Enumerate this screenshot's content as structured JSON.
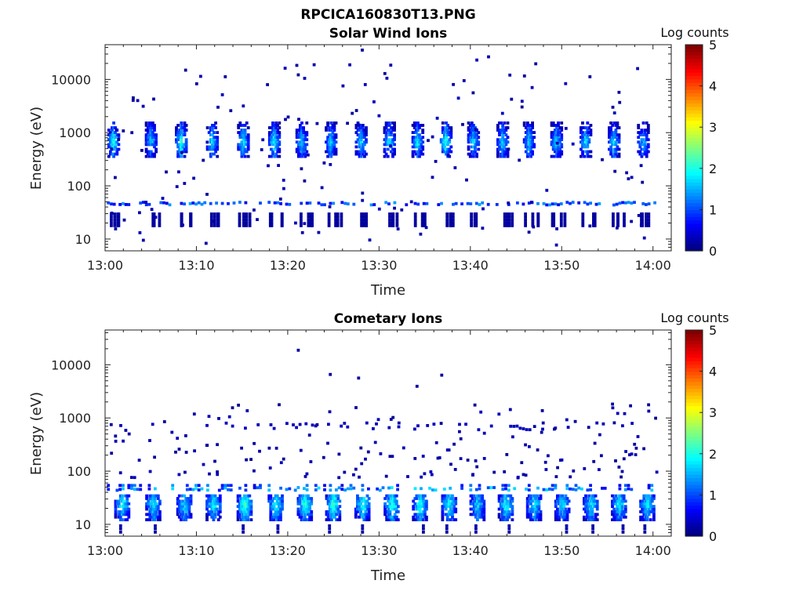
{
  "figure_title": "RPCICA160830T13.PNG",
  "colorbar": {
    "label": "Log counts",
    "ticks": [
      "0",
      "1",
      "2",
      "3",
      "4",
      "5"
    ],
    "range": [
      0,
      5
    ],
    "colormap": "jet"
  },
  "chart_data": [
    {
      "type": "heatmap",
      "title": "Solar Wind Ions",
      "xlabel": "Time",
      "ylabel": "Energy (eV)",
      "x_ticks": [
        "13:00",
        "13:10",
        "13:20",
        "13:30",
        "13:40",
        "13:50",
        "14:00"
      ],
      "y_ticks": [
        "10",
        "100",
        "1000",
        "10000"
      ],
      "y_scale": "log",
      "ylim": [
        6,
        45000
      ],
      "xlim": [
        "13:00",
        "14:02"
      ],
      "bursts": [
        {
          "t": "13:00.8",
          "e": 700,
          "peak": 2.0
        },
        {
          "t": "13:04.9",
          "e": 750,
          "peak": 1.6
        },
        {
          "t": "13:08.2",
          "e": 700,
          "peak": 2.1
        },
        {
          "t": "13:11.6",
          "e": 700,
          "peak": 1.8
        },
        {
          "t": "13:15.0",
          "e": 700,
          "peak": 1.9
        },
        {
          "t": "13:18.4",
          "e": 700,
          "peak": 2.0
        },
        {
          "t": "13:21.4",
          "e": 700,
          "peak": 1.7
        },
        {
          "t": "13:24.6",
          "e": 700,
          "peak": 1.7
        },
        {
          "t": "13:27.9",
          "e": 700,
          "peak": 1.7
        },
        {
          "t": "13:31.0",
          "e": 700,
          "peak": 1.8
        },
        {
          "t": "13:34.1",
          "e": 700,
          "peak": 1.9
        },
        {
          "t": "13:37.2",
          "e": 700,
          "peak": 2.1
        },
        {
          "t": "13:40.2",
          "e": 750,
          "peak": 1.7
        },
        {
          "t": "13:43.4",
          "e": 700,
          "peak": 1.7
        },
        {
          "t": "13:46.3",
          "e": 700,
          "peak": 1.8
        },
        {
          "t": "13:49.3",
          "e": 700,
          "peak": 1.7
        },
        {
          "t": "13:52.5",
          "e": 700,
          "peak": 1.8
        },
        {
          "t": "13:55.6",
          "e": 700,
          "peak": 1.8
        },
        {
          "t": "13:58.8",
          "e": 700,
          "peak": 1.6
        }
      ],
      "low_band_e": 50,
      "low_band_level": 1.2,
      "low_clusters_e": 25,
      "low_clusters_level": 0.3
    },
    {
      "type": "heatmap",
      "title": "Cometary Ions",
      "xlabel": "Time",
      "ylabel": "Energy (eV)",
      "x_ticks": [
        "13:00",
        "13:10",
        "13:20",
        "13:30",
        "13:40",
        "13:50",
        "14:00"
      ],
      "y_ticks": [
        "10",
        "100",
        "1000",
        "10000"
      ],
      "y_scale": "log",
      "ylim": [
        6,
        45000
      ],
      "xlim": [
        "13:00",
        "14:02"
      ],
      "bursts": [
        {
          "t": "13:01.8",
          "e": 25,
          "peak": 2.0
        },
        {
          "t": "13:05.2",
          "e": 25,
          "peak": 1.9
        },
        {
          "t": "13:08.6",
          "e": 25,
          "peak": 1.8
        },
        {
          "t": "13:11.8",
          "e": 25,
          "peak": 1.9
        },
        {
          "t": "13:15.2",
          "e": 25,
          "peak": 2.3
        },
        {
          "t": "13:18.6",
          "e": 25,
          "peak": 2.1
        },
        {
          "t": "13:21.8",
          "e": 25,
          "peak": 2.2
        },
        {
          "t": "13:24.9",
          "e": 25,
          "peak": 2.2
        },
        {
          "t": "13:28.1",
          "e": 25,
          "peak": 2.1
        },
        {
          "t": "13:31.3",
          "e": 25,
          "peak": 2.2
        },
        {
          "t": "13:34.4",
          "e": 25,
          "peak": 2.1
        },
        {
          "t": "13:37.6",
          "e": 25,
          "peak": 2.0
        },
        {
          "t": "13:40.7",
          "e": 25,
          "peak": 1.8
        },
        {
          "t": "13:43.8",
          "e": 25,
          "peak": 2.0
        },
        {
          "t": "13:46.9",
          "e": 25,
          "peak": 1.9
        },
        {
          "t": "13:50.0",
          "e": 25,
          "peak": 1.8
        },
        {
          "t": "13:53.1",
          "e": 25,
          "peak": 1.9
        },
        {
          "t": "13:56.2",
          "e": 25,
          "peak": 1.9
        },
        {
          "t": "13:59.3",
          "e": 25,
          "peak": 1.9
        }
      ],
      "low_band_e": 50,
      "low_band_level": 1.5,
      "mid_band_e": 750,
      "mid_band_level": 0.3
    }
  ]
}
